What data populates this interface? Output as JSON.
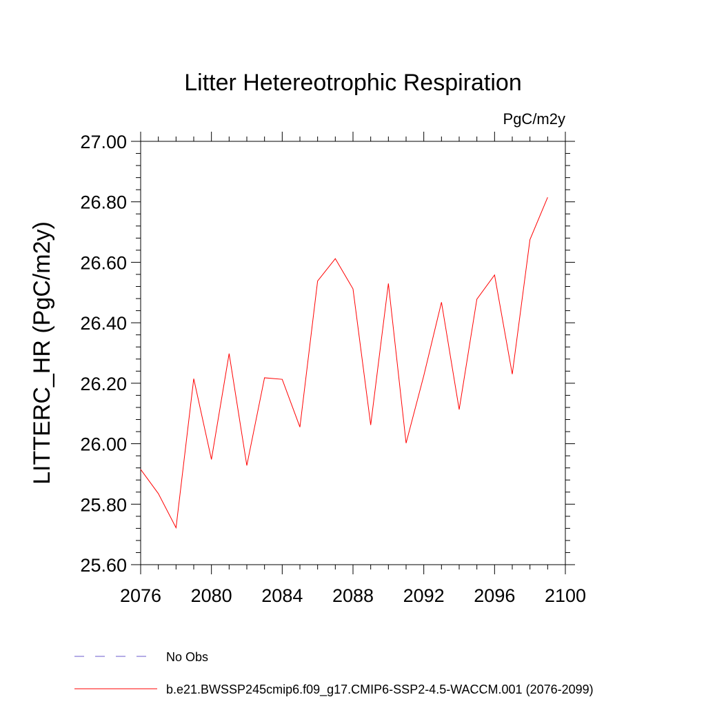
{
  "chart_data": {
    "type": "line",
    "title": "Litter Hetereotrophic Respiration",
    "units_label": "PgC/m2y",
    "xlabel": "",
    "ylabel": "LITTERC_HR  (PgC/m2y)",
    "xlim": [
      2076,
      2100
    ],
    "ylim": [
      25.6,
      27.0
    ],
    "x_ticks": [
      2076,
      2080,
      2084,
      2088,
      2092,
      2096,
      2100
    ],
    "x_tick_labels": [
      "2076",
      "2080",
      "2084",
      "2088",
      "2092",
      "2096",
      "2100"
    ],
    "y_ticks": [
      25.6,
      25.8,
      26.0,
      26.2,
      26.4,
      26.6,
      26.8,
      27.0
    ],
    "y_tick_labels": [
      "25.60",
      "25.80",
      "26.00",
      "26.20",
      "26.40",
      "26.60",
      "26.80",
      "27.00"
    ],
    "grid": false,
    "legend_position": "bottom",
    "series": [
      {
        "name": "b.e21.BWSSP245cmip6.f09_g17.CMIP6-SSP2-4.5-WACCM.001 (2076-2099)",
        "color": "#ff0000",
        "style": "solid",
        "x": [
          2076,
          2077,
          2078,
          2079,
          2080,
          2081,
          2082,
          2083,
          2084,
          2085,
          2086,
          2087,
          2088,
          2089,
          2090,
          2091,
          2092,
          2093,
          2094,
          2095,
          2096,
          2097,
          2098,
          2099
        ],
        "y": [
          25.915,
          25.835,
          25.722,
          26.215,
          25.948,
          26.298,
          25.928,
          26.218,
          26.213,
          26.055,
          26.538,
          26.612,
          26.512,
          26.062,
          26.53,
          26.002,
          26.225,
          26.468,
          26.113,
          26.478,
          26.558,
          26.23,
          26.675,
          26.815
        ]
      }
    ],
    "legend": [
      {
        "label": "No Obs",
        "color": "#6a5acd",
        "style": "dashed"
      },
      {
        "label": "b.e21.BWSSP245cmip6.f09_g17.CMIP6-SSP2-4.5-WACCM.001 (2076-2099)",
        "color": "#ff0000",
        "style": "solid"
      }
    ]
  }
}
